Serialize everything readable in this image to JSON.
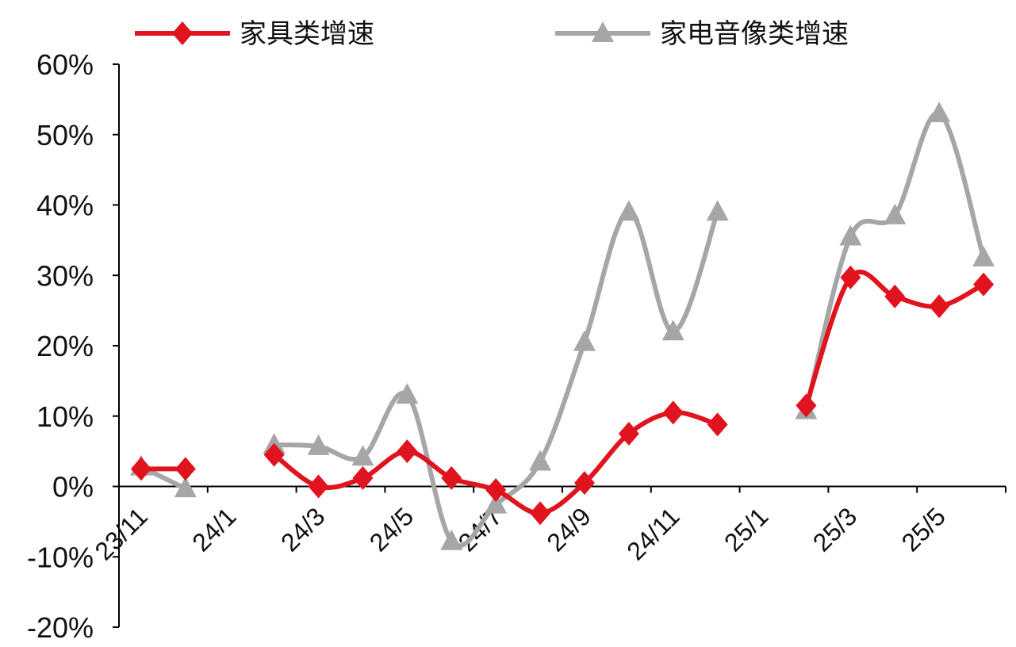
{
  "chart_data": {
    "type": "line",
    "categories": [
      "23/11",
      null,
      "24/1",
      null,
      "24/3",
      null,
      "24/5",
      null,
      "24/7",
      null,
      "24/9",
      null,
      "24/11",
      null,
      "25/1",
      null,
      "25/3",
      null,
      "25/5",
      null
    ],
    "series": [
      {
        "name": "家具类增速",
        "color": "#e0141e",
        "marker": "diamond",
        "values": [
          2.5,
          2.5,
          null,
          4.5,
          0,
          1.2,
          5,
          1.2,
          -0.5,
          -3.8,
          0.5,
          7.5,
          10.5,
          8.8,
          null,
          11.5,
          29.7,
          27,
          25.6,
          28.7
        ]
      },
      {
        "name": "家电音像类增速",
        "color": "#a6a6a6",
        "marker": "triangle",
        "values": [
          2.8,
          -0.3,
          null,
          5.9,
          5.7,
          4.2,
          13,
          -7.8,
          -2.6,
          3.5,
          20.5,
          39,
          22,
          39,
          null,
          10.8,
          35.5,
          38.5,
          53,
          32.5
        ]
      }
    ],
    "ylim": [
      -20,
      60
    ],
    "yticks": [
      {
        "value": -20,
        "label": "-20%"
      },
      {
        "value": -10,
        "label": "-10%"
      },
      {
        "value": 0,
        "label": "0%"
      },
      {
        "value": 10,
        "label": "10%"
      },
      {
        "value": 20,
        "label": "20%"
      },
      {
        "value": 30,
        "label": "30%"
      },
      {
        "value": 40,
        "label": "40%"
      },
      {
        "value": 50,
        "label": "50%"
      },
      {
        "value": 60,
        "label": "60%"
      }
    ],
    "smooth": true
  }
}
